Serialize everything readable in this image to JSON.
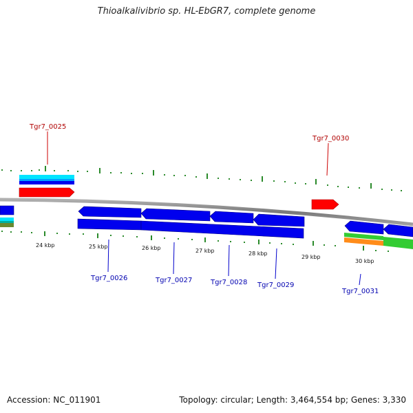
{
  "title": "Thioalkalivibrio sp. HL-EbGR7, complete genome",
  "footer": {
    "accession": "Accession: NC_011901",
    "stats": "Topology: circular; Length: 3,464,554 bp; Genes: 3,330"
  },
  "ticks": [
    "24 kbp",
    "25 kbp",
    "26 kbp",
    "27 kbp",
    "28 kbp",
    "29 kbp",
    "30 kbp"
  ],
  "genes": {
    "top": [
      "Tgr7_0025",
      "Tgr7_0030"
    ],
    "bottom": [
      "Tgr7_0026",
      "Tgr7_0027",
      "Tgr7_0028",
      "Tgr7_0029",
      "Tgr7_0031"
    ]
  },
  "colors": {
    "forward_cds": "#ff0000",
    "reverse_cds": "#0000ee",
    "backbone": "#888888",
    "tick_marks": "#2a8a2a",
    "cyan_feature": "#00e5ff",
    "green_feature": "#33cc33",
    "orange_feature": "#ff8c1a"
  }
}
